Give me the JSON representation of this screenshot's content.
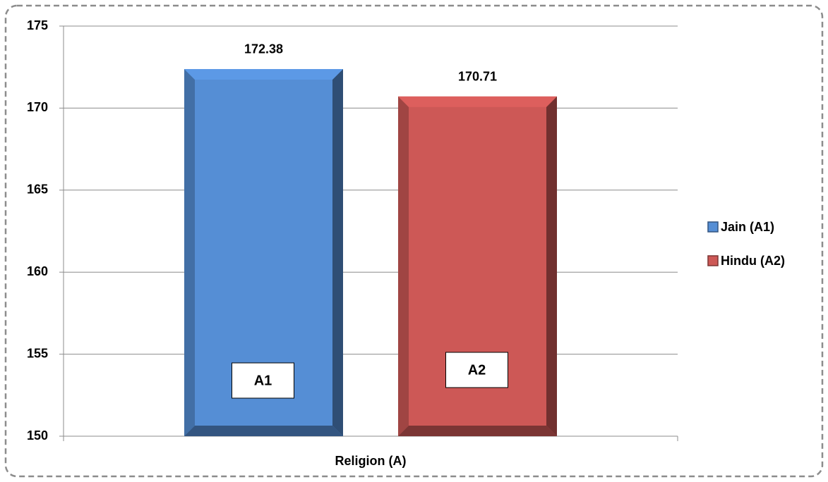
{
  "chart_data": {
    "type": "bar",
    "categories": [
      "Religion (A)"
    ],
    "series": [
      {
        "name": "Jain (A1)",
        "color": "#558ed5",
        "values": [
          172.38
        ]
      },
      {
        "name": "Hindu (A2)",
        "color": "#cd5856",
        "values": [
          170.71
        ]
      }
    ],
    "annotations": [
      "A1",
      "A2"
    ],
    "ylim": [
      150,
      175
    ],
    "yticks": [
      150,
      155,
      160,
      165,
      170,
      175
    ],
    "grid": true,
    "legend": "right"
  }
}
